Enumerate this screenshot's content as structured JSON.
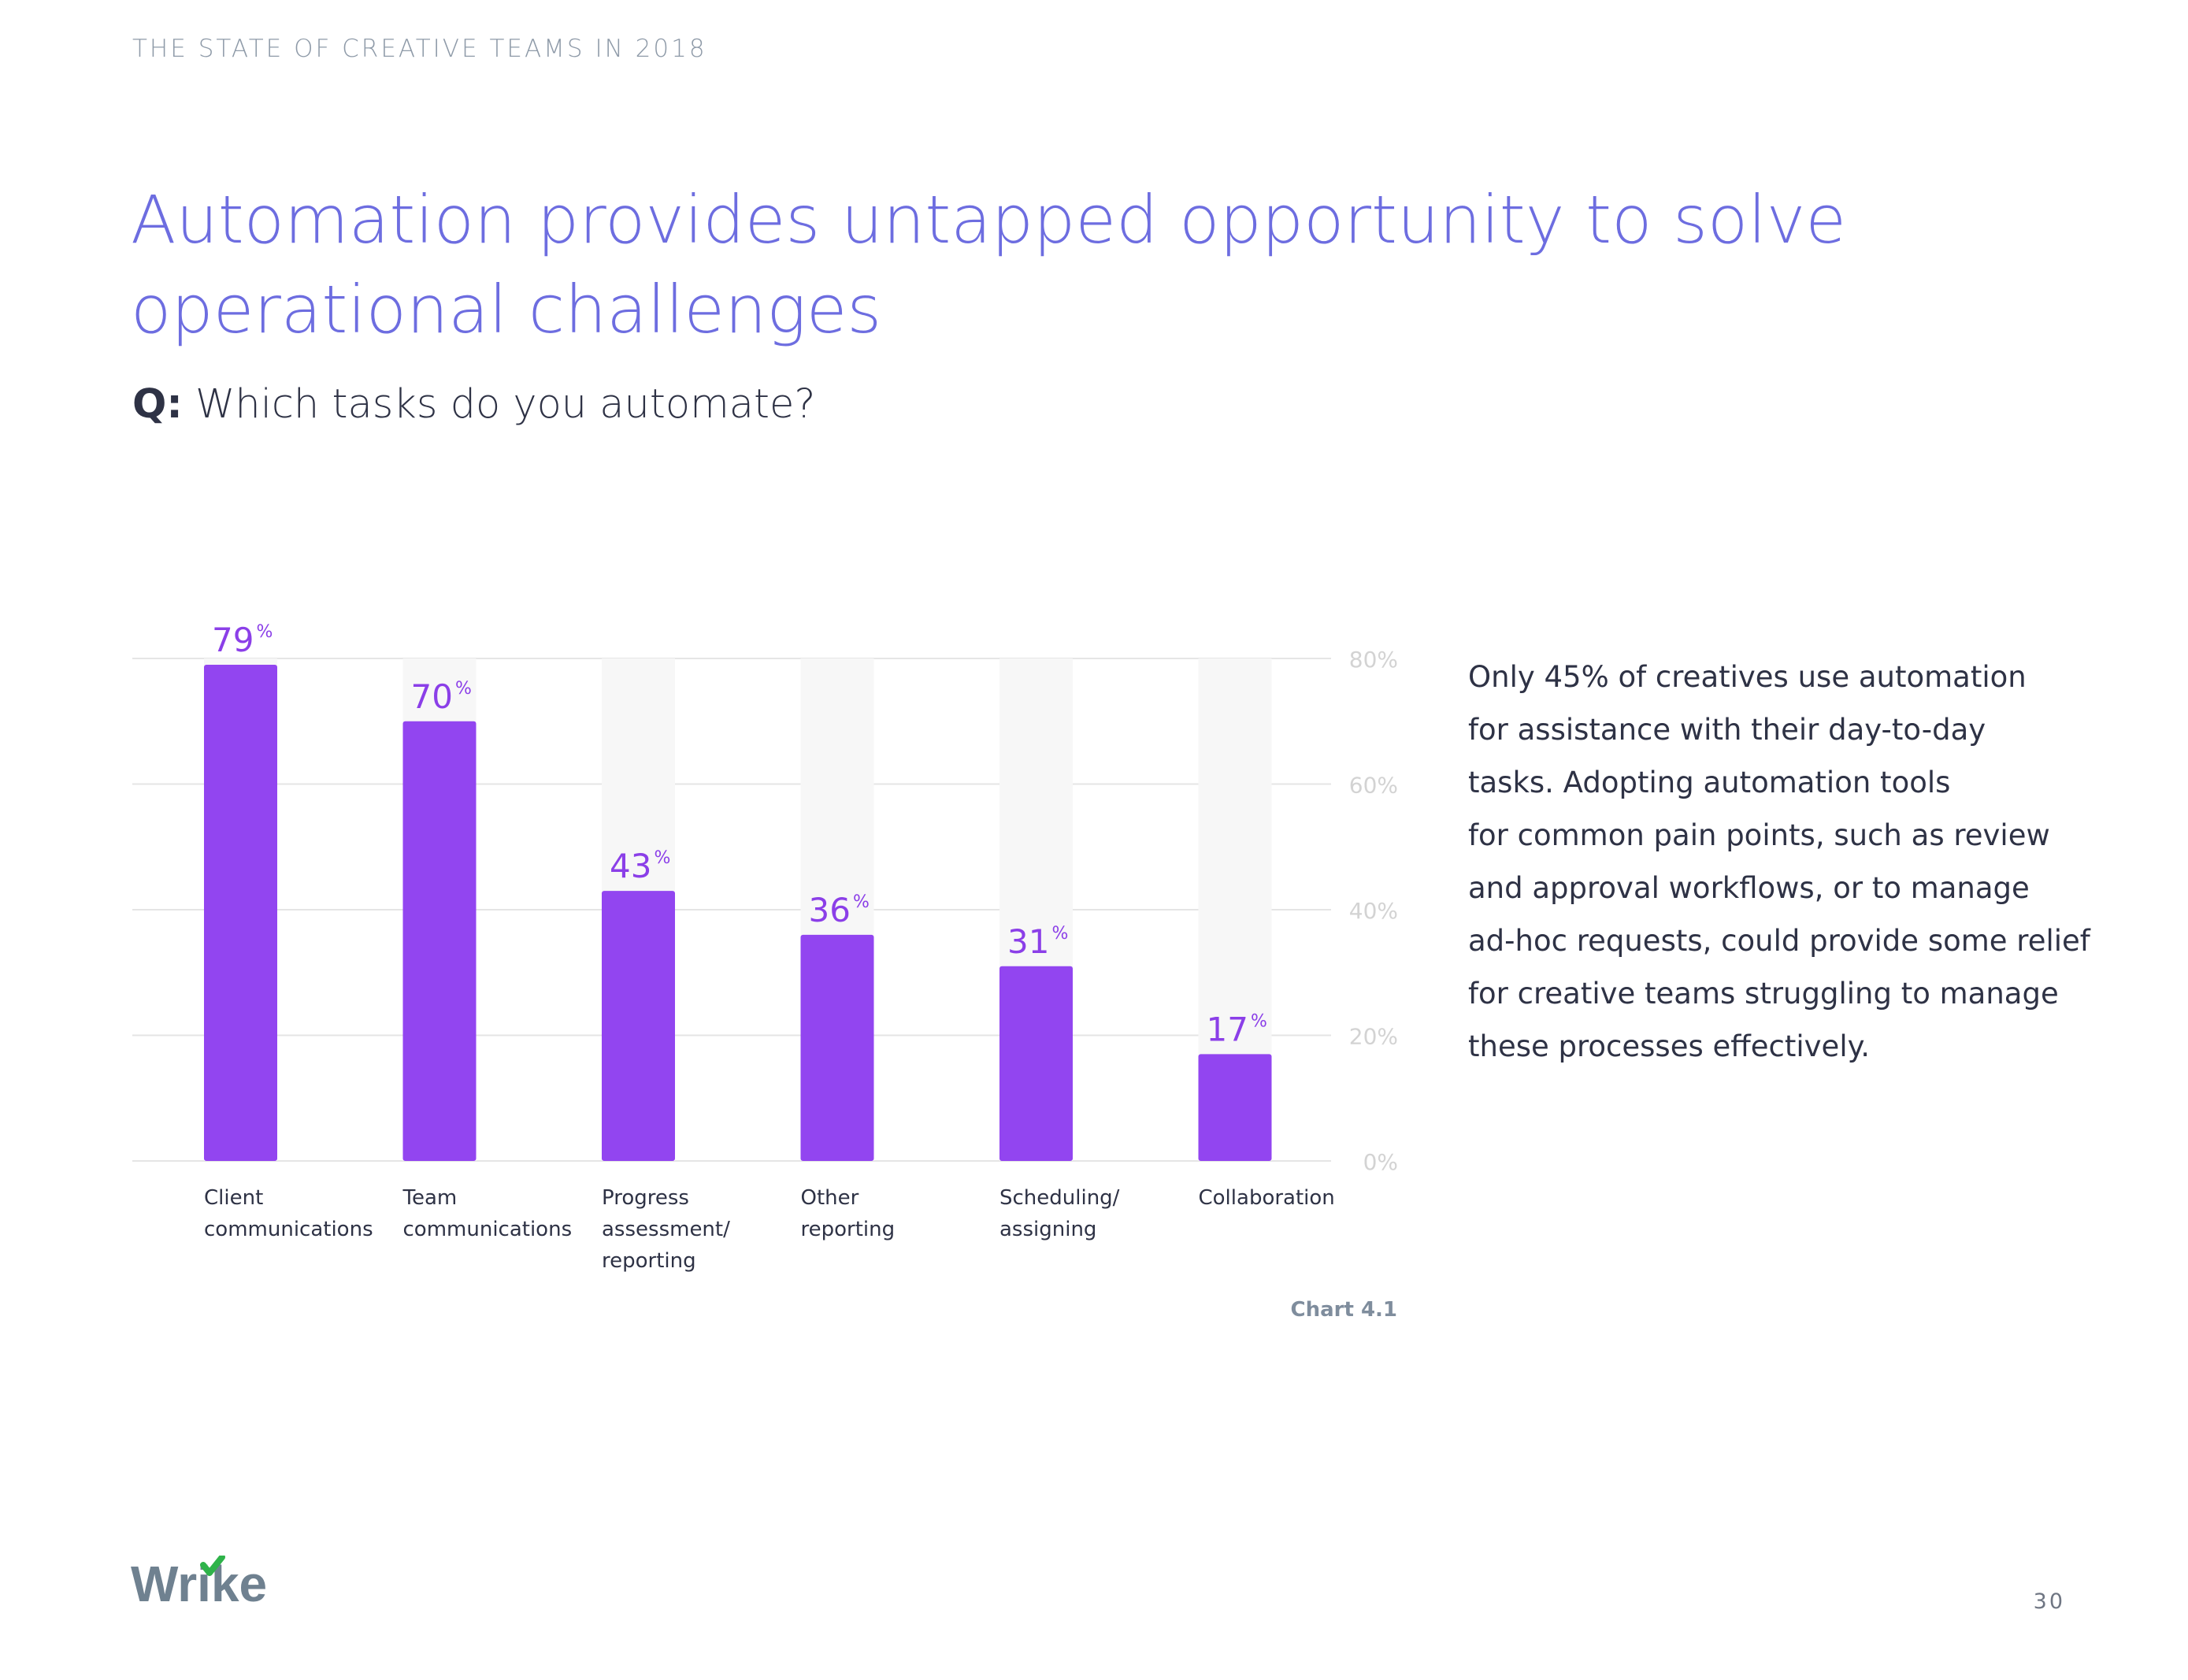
{
  "header": {
    "running_title": "THE STATE OF CREATIVE TEAMS IN 2018"
  },
  "title": "Automation provides untapped opportunity to solve operational challenges",
  "question": {
    "prefix": "Q:",
    "text": "Which tasks do you automate?"
  },
  "chart_data": {
    "type": "bar",
    "categories": [
      [
        "Client",
        "communications"
      ],
      [
        "Team",
        "communications"
      ],
      [
        "Progress",
        "assessment/",
        "reporting"
      ],
      [
        "Other",
        "reporting"
      ],
      [
        "Scheduling/",
        "assigning"
      ],
      [
        "Collaboration"
      ]
    ],
    "values": [
      79,
      70,
      43,
      36,
      31,
      17
    ],
    "value_suffix": "%",
    "ylim": [
      0,
      80
    ],
    "yticks": [
      0,
      20,
      40,
      60,
      80
    ],
    "ytick_labels": [
      "0%",
      "20%",
      "40%",
      "60%",
      "80%"
    ],
    "grid": true,
    "y_axis_position": "right",
    "colors": {
      "bar": "#9245f0",
      "bar_background": "#f7f7f7",
      "grid": "#e5e5e5",
      "value_label": "#8b3fe8",
      "tick_label": "#d3d3d3",
      "category_label": "#2e3245"
    }
  },
  "chart_caption": "Chart 4.1",
  "side_text": "Only 45% of creatives use automation for assistance with their day-to-day tasks. Adopting automation tools for common pain points, such as review and approval workflows, or to manage ad-hoc requests, could provide some relief for creative teams struggling to manage these processes effectively.",
  "side_text_lines": [
    "Only 45% of creatives use automation",
    "for assistance with their day-to-day",
    "tasks. Adopting automation tools",
    "for common pain points, such as review",
    "and approval workflows, or to manage",
    "ad-hoc requests, could provide some relief",
    "for creative teams struggling to manage",
    "these processes effectively."
  ],
  "footer": {
    "logo_text": "Wrike",
    "logo_name": "wrike-logo",
    "page_number": "30"
  },
  "colors": {
    "title": "#6d6de0",
    "running_header": "#8e9aa8",
    "logo_text": "#6f8190",
    "logo_check": "#2fb34a"
  }
}
